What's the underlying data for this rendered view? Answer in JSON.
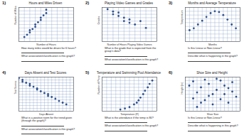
{
  "chart_data": [
    {
      "number": "1)",
      "type": "scatter",
      "title": "Hours and Miles Driven",
      "x_label": "Number of Hours",
      "y_label": "Number of Miles Driven",
      "x": [
        1,
        1.5,
        2,
        2,
        2.5,
        3,
        3,
        3.5,
        4,
        4,
        4.5,
        5,
        5
      ],
      "values": [
        40,
        60,
        80,
        100,
        110,
        130,
        150,
        170,
        190,
        210,
        230,
        250,
        280
      ],
      "xlim": [
        0,
        10
      ],
      "xticks": [
        0,
        1,
        2,
        3,
        4,
        5,
        6,
        7,
        8,
        9,
        10
      ],
      "ylim": [
        0,
        300
      ],
      "yticks": [
        0,
        30,
        60,
        90,
        120,
        150,
        180,
        210,
        240,
        270,
        300
      ],
      "grid": true,
      "tick_labels": false,
      "color": "#2f4f8f",
      "marker": "circle",
      "annotations": [
        "How many miles would be driven for 6 hours?",
        "What association/classification is this graph?"
      ]
    },
    {
      "number": "2)",
      "type": "scatter",
      "title": "Playing Video Games and Grades",
      "x_label": "Number of Hours Playing Video Games",
      "y_label": "Grades",
      "x": [
        1,
        2,
        2,
        3,
        3,
        4,
        4,
        5,
        5,
        6,
        7,
        8
      ],
      "values": [
        95,
        88,
        80,
        85,
        75,
        70,
        60,
        65,
        55,
        50,
        60,
        40
      ],
      "xlim": [
        0,
        10
      ],
      "xticks": [
        0,
        1,
        2,
        3,
        4,
        5,
        6,
        7,
        8,
        9,
        10
      ],
      "ylim": [
        0,
        100
      ],
      "yticks": [
        0,
        10,
        20,
        30,
        40,
        50,
        60,
        70,
        80,
        90,
        100
      ],
      "grid": true,
      "tick_labels": false,
      "color": "#2f4f8f",
      "marker": "circle",
      "annotations": [
        "What is the grade that is expected from the group's data?",
        "What association/classification is this graph?"
      ]
    },
    {
      "number": "3)",
      "type": "scatter",
      "title": "Months and Average Temperature",
      "x_label": "Months",
      "y_label": "Temperature",
      "x": [
        1,
        2,
        3,
        4,
        5,
        6,
        7,
        8,
        9,
        10,
        11,
        12
      ],
      "values": [
        30,
        35,
        45,
        55,
        65,
        75,
        80,
        78,
        70,
        58,
        45,
        35
      ],
      "xlim": [
        0,
        13
      ],
      "xticks": [
        0,
        1,
        2,
        3,
        4,
        5,
        6,
        7,
        8,
        9,
        10,
        11,
        12,
        13
      ],
      "ylim": [
        0,
        90
      ],
      "yticks": [
        0,
        10,
        20,
        30,
        40,
        50,
        60,
        70,
        80,
        90
      ],
      "grid": true,
      "tick_labels": false,
      "color": "#2f4f8f",
      "marker": "circle",
      "annotations": [
        "Is this Linear or Non-Linear?",
        "Describe what is happening in the graph?"
      ]
    },
    {
      "number": "4)",
      "type": "scatter",
      "title": "Days Absent and Test Scores",
      "x_label": "Days Absent",
      "y_label": "Test Scores",
      "x": [
        0,
        1,
        1,
        2,
        3,
        3,
        4,
        5,
        5,
        6,
        7,
        8,
        8,
        9,
        10,
        11,
        12,
        13
      ],
      "values": [
        98,
        95,
        92,
        90,
        88,
        85,
        83,
        80,
        78,
        75,
        72,
        70,
        67,
        65,
        62,
        58,
        55,
        52
      ],
      "xlim": [
        0,
        15
      ],
      "xticks": [
        0,
        1,
        2,
        3,
        4,
        5,
        6,
        7,
        8,
        9,
        10,
        11,
        12,
        13,
        14,
        15
      ],
      "ylim": [
        40,
        100
      ],
      "yticks": [
        40,
        45,
        50,
        55,
        60,
        65,
        70,
        75,
        80,
        85,
        90,
        95,
        100
      ],
      "grid": true,
      "tick_labels": false,
      "color": "#2f4f8f",
      "marker": "circle",
      "annotations": [
        "What is a positive norm for the trend given (through the graph)?",
        "What association/classification is this graph?"
      ]
    },
    {
      "number": "5)",
      "type": "scatter",
      "title": "Temperature and Swimming Pool Attendance",
      "x_label": "Temperature (F)",
      "y_label": "Number of People Swimming",
      "x": [
        60,
        65,
        70,
        75,
        78,
        80,
        82,
        85,
        87,
        90,
        92,
        95
      ],
      "values": [
        5,
        8,
        12,
        20,
        25,
        32,
        40,
        50,
        60,
        70,
        80,
        90
      ],
      "xlim": [
        40,
        100
      ],
      "xticks": [
        40,
        45,
        50,
        55,
        60,
        65,
        70,
        75,
        80,
        85,
        90,
        95,
        100
      ],
      "ylim": [
        0,
        100
      ],
      "yticks": [
        0,
        10,
        20,
        30,
        40,
        50,
        60,
        70,
        80,
        90,
        100
      ],
      "grid": true,
      "tick_labels": false,
      "color": "#2f4f8f",
      "marker": "circle",
      "annotations": [
        "What is the attendance if the temp is 80?",
        "What association/classification is this graph?"
      ]
    },
    {
      "number": "6)",
      "type": "scatter",
      "title": "Shoe Size and Height",
      "x_label": "Shoe Size",
      "y_label": "Height (in)",
      "x": [
        1,
        2,
        2,
        3,
        4,
        4,
        5,
        6,
        6,
        7,
        8,
        8,
        9,
        10,
        10,
        11,
        12,
        12,
        13,
        3,
        7,
        11,
        5,
        9
      ],
      "values": [
        70,
        55,
        75,
        62,
        50,
        68,
        77,
        58,
        72,
        48,
        65,
        78,
        54,
        70,
        60,
        50,
        74,
        63,
        57,
        45,
        60,
        67,
        53,
        76
      ],
      "xlim": [
        0,
        14
      ],
      "xticks": [
        0,
        1,
        2,
        3,
        4,
        5,
        6,
        7,
        8,
        9,
        10,
        11,
        12,
        13,
        14
      ],
      "ylim": [
        40,
        80
      ],
      "yticks": [
        40,
        44,
        48,
        52,
        56,
        60,
        64,
        68,
        72,
        76,
        80
      ],
      "grid": true,
      "tick_labels": false,
      "color": "#2f4f8f",
      "marker": "circle",
      "annotations": [
        "Is this Linear or Non-Linear?",
        "Describe what is happening in this graph?"
      ]
    }
  ]
}
